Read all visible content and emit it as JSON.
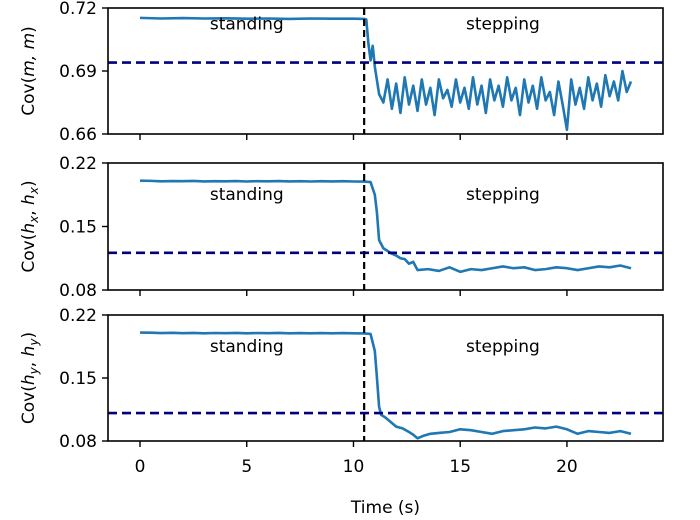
{
  "chart_data": [
    {
      "type": "line",
      "ylabel": "Cov(m, m)",
      "ylabel_main": "Cov(",
      "ylabel_args": "m, m",
      "ylabel_close": ")",
      "ylim": [
        0.66,
        0.72
      ],
      "yticks": [
        0.66,
        0.69,
        0.72
      ],
      "ytick_labels": [
        "0.66",
        "0.69",
        "0.72"
      ],
      "threshold": 0.694,
      "transition_time": 10.5,
      "annotations": [
        {
          "text": "standing",
          "x": 5.0,
          "y": 0.7097
        },
        {
          "text": "stepping",
          "x": 17.0,
          "y": 0.7097
        }
      ],
      "series": [
        {
          "name": "Cov(m, m)",
          "x": [
            0,
            1,
            2,
            3,
            4,
            5,
            6,
            7,
            8,
            9,
            10,
            10.5,
            10.6,
            10.7,
            10.8,
            10.9,
            11.0,
            11.2,
            11.4,
            11.6,
            11.8,
            12.0,
            12.2,
            12.4,
            12.6,
            12.8,
            13.0,
            13.2,
            13.4,
            13.6,
            13.8,
            14.0,
            14.2,
            14.4,
            14.6,
            14.8,
            15.0,
            15.2,
            15.4,
            15.6,
            15.8,
            16.0,
            16.2,
            16.4,
            16.6,
            16.8,
            17.0,
            17.2,
            17.4,
            17.6,
            17.8,
            18.0,
            18.2,
            18.4,
            18.6,
            18.8,
            19.0,
            19.2,
            19.4,
            19.6,
            19.8,
            20.0,
            20.2,
            20.4,
            20.6,
            20.8,
            21.0,
            21.2,
            21.4,
            21.6,
            21.8,
            22.0,
            22.2,
            22.4,
            22.6,
            22.8,
            23.0
          ],
          "y": [
            0.7153,
            0.715,
            0.7152,
            0.715,
            0.7151,
            0.7149,
            0.715,
            0.7148,
            0.715,
            0.7149,
            0.7149,
            0.7148,
            0.7145,
            0.703,
            0.695,
            0.702,
            0.692,
            0.679,
            0.675,
            0.686,
            0.672,
            0.684,
            0.67,
            0.687,
            0.674,
            0.683,
            0.671,
            0.686,
            0.674,
            0.682,
            0.669,
            0.686,
            0.677,
            0.681,
            0.673,
            0.686,
            0.675,
            0.682,
            0.672,
            0.687,
            0.674,
            0.683,
            0.67,
            0.686,
            0.676,
            0.683,
            0.673,
            0.687,
            0.676,
            0.682,
            0.669,
            0.686,
            0.675,
            0.683,
            0.672,
            0.687,
            0.676,
            0.68,
            0.669,
            0.685,
            0.674,
            0.662,
            0.686,
            0.674,
            0.682,
            0.672,
            0.687,
            0.676,
            0.684,
            0.673,
            0.688,
            0.678,
            0.685,
            0.676,
            0.69,
            0.68,
            0.685
          ]
        }
      ]
    },
    {
      "type": "line",
      "ylabel": "Cov(hx, hx)",
      "ylabel_main": "Cov(",
      "ylabel_args": "h",
      "ylabel_sub": "x",
      "ylabel_sep": ", ",
      "ylabel_args2": "h",
      "ylabel_sub2": "x",
      "ylabel_close": ")",
      "ylim": [
        0.08,
        0.22
      ],
      "yticks": [
        0.08,
        0.15,
        0.22
      ],
      "ytick_labels": [
        "0.08",
        "0.15",
        "0.22"
      ],
      "threshold": 0.121,
      "transition_time": 10.5,
      "annotations": [
        {
          "text": "standing",
          "x": 5.0,
          "y": 0.179
        },
        {
          "text": "stepping",
          "x": 17.0,
          "y": 0.179
        }
      ],
      "series": [
        {
          "name": "Cov(hx, hx)",
          "x": [
            0,
            0.5,
            1,
            1.5,
            2,
            2.5,
            3,
            3.5,
            4,
            4.5,
            5,
            5.5,
            6,
            6.5,
            7,
            7.5,
            8,
            8.5,
            9,
            9.5,
            10,
            10.5,
            10.8,
            11.0,
            11.1,
            11.2,
            11.4,
            11.6,
            11.8,
            12.0,
            12.2,
            12.4,
            12.6,
            12.8,
            13.0,
            13.5,
            14.0,
            14.5,
            15.0,
            15.5,
            16.0,
            16.5,
            17.0,
            17.5,
            18.0,
            18.5,
            19.0,
            19.5,
            20.0,
            20.5,
            21.0,
            21.5,
            22.0,
            22.5,
            23.0
          ],
          "y": [
            0.2005,
            0.2003,
            0.1998,
            0.2001,
            0.1999,
            0.2002,
            0.1997,
            0.2,
            0.1998,
            0.2001,
            0.1996,
            0.2,
            0.1998,
            0.2001,
            0.1997,
            0.1999,
            0.1996,
            0.1999,
            0.1997,
            0.1999,
            0.1996,
            0.1995,
            0.199,
            0.185,
            0.165,
            0.135,
            0.126,
            0.123,
            0.12,
            0.118,
            0.115,
            0.114,
            0.109,
            0.111,
            0.102,
            0.103,
            0.101,
            0.105,
            0.1,
            0.103,
            0.102,
            0.104,
            0.106,
            0.104,
            0.105,
            0.102,
            0.103,
            0.105,
            0.104,
            0.102,
            0.104,
            0.106,
            0.105,
            0.107,
            0.104
          ]
        }
      ]
    },
    {
      "type": "line",
      "ylabel": "Cov(hy, hy)",
      "ylabel_main": "Cov(",
      "ylabel_args": "h",
      "ylabel_sub": "y",
      "ylabel_sep": ", ",
      "ylabel_args2": "h",
      "ylabel_sub2": "y",
      "ylabel_close": ")",
      "xlabel": "Time (s)",
      "xlim": [
        -1.5,
        24.5
      ],
      "xticks": [
        0,
        5,
        10,
        15,
        20
      ],
      "xtick_labels": [
        "0",
        "5",
        "10",
        "15",
        "20"
      ],
      "ylim": [
        0.08,
        0.22
      ],
      "yticks": [
        0.08,
        0.15,
        0.22
      ],
      "ytick_labels": [
        "0.08",
        "0.15",
        "0.22"
      ],
      "threshold": 0.111,
      "transition_time": 10.5,
      "annotations": [
        {
          "text": "standing",
          "x": 5.0,
          "y": 0.179
        },
        {
          "text": "stepping",
          "x": 17.0,
          "y": 0.179
        }
      ],
      "series": [
        {
          "name": "Cov(hy, hy)",
          "x": [
            0,
            0.5,
            1,
            1.5,
            2,
            2.5,
            3,
            3.5,
            4,
            4.5,
            5,
            5.5,
            6,
            6.5,
            7,
            7.5,
            8,
            8.5,
            9,
            9.5,
            10,
            10.5,
            10.8,
            11.0,
            11.1,
            11.2,
            11.3,
            11.5,
            11.8,
            12.0,
            12.3,
            12.6,
            12.8,
            13.0,
            13.3,
            13.6,
            14.0,
            14.5,
            15.0,
            15.5,
            16.0,
            16.5,
            17.0,
            17.5,
            18.0,
            18.5,
            19.0,
            19.5,
            20.0,
            20.5,
            21.0,
            21.5,
            22.0,
            22.5,
            23.0
          ],
          "y": [
            0.2005,
            0.2003,
            0.1999,
            0.2002,
            0.1998,
            0.2001,
            0.1996,
            0.2,
            0.1998,
            0.2001,
            0.1996,
            0.2,
            0.1998,
            0.2001,
            0.1997,
            0.1999,
            0.1996,
            0.1999,
            0.1997,
            0.1999,
            0.1996,
            0.1995,
            0.199,
            0.18,
            0.15,
            0.118,
            0.109,
            0.106,
            0.1,
            0.096,
            0.094,
            0.09,
            0.087,
            0.083,
            0.086,
            0.088,
            0.089,
            0.09,
            0.093,
            0.092,
            0.09,
            0.088,
            0.091,
            0.092,
            0.093,
            0.095,
            0.094,
            0.096,
            0.093,
            0.088,
            0.091,
            0.09,
            0.089,
            0.091,
            0.088
          ]
        }
      ]
    }
  ],
  "colors": {
    "line": "#1f77b4",
    "threshold": "#00007f",
    "vline": "#000000",
    "axes": "#000000"
  }
}
